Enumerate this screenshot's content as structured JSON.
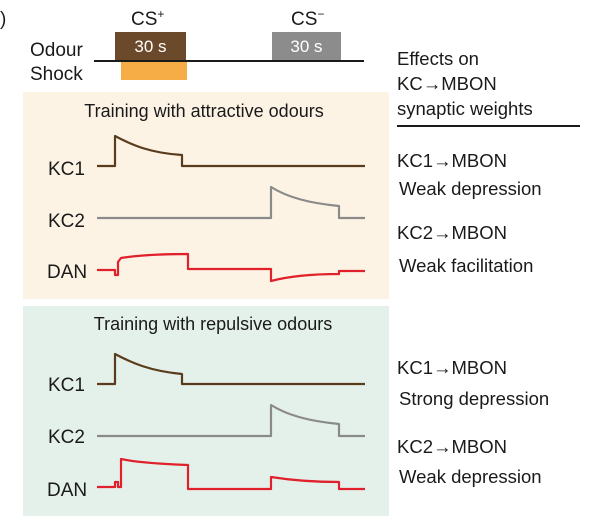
{
  "header": {
    "panel_letter": ")",
    "cs_plus": "CS",
    "cs_plus_sup": "+",
    "cs_minus": "CS",
    "cs_minus_sup": "−",
    "odour_label": "Odour",
    "shock_label": "Shock",
    "cs_plus_duration": "30 s",
    "cs_minus_duration": "30 s"
  },
  "effects_header": [
    "Effects on",
    "KC→MBON",
    "synaptic weights"
  ],
  "panels": [
    {
      "title": "Training with attractive odours",
      "traces": [
        "KC1",
        "KC2",
        "DAN"
      ],
      "effects": [
        {
          "synapse": "KC1→MBON",
          "effect": "Weak depression"
        },
        {
          "synapse": "KC2→MBON",
          "effect": "Weak facilitation"
        }
      ]
    },
    {
      "title": "Training with repulsive odours",
      "traces": [
        "KC1",
        "KC2",
        "DAN"
      ],
      "effects": [
        {
          "synapse": "KC1→MBON",
          "effect": "Strong depression"
        },
        {
          "synapse": "KC2→MBON",
          "effect": "Weak depression"
        }
      ]
    }
  ],
  "colors": {
    "cs_plus_box": "#6b4a2b",
    "cs_minus_box": "#8c8c8c",
    "shock_box": "#f7ad45",
    "attractive_panel_bg": "#fdf3e5",
    "repulsive_panel_bg": "#e4f1ea",
    "kc1_trace": "#5a3c1c",
    "kc2_trace": "#8a8a8a",
    "dan_trace": "#e0202a"
  }
}
